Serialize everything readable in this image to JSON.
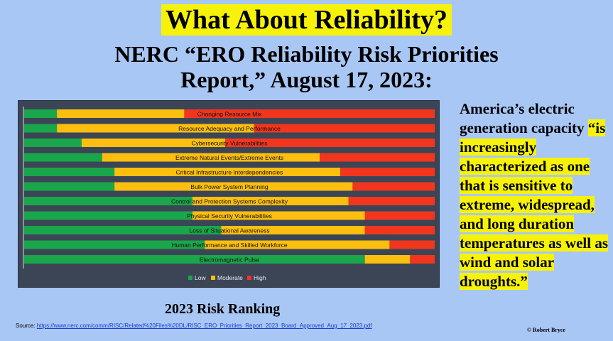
{
  "title": "What About Reliability?",
  "subtitle_line1": "NERC “ERO Reliability Risk Priorities",
  "subtitle_line2": "Report,” August 17, 2023:",
  "quote": {
    "plain": "America’s electric generation capacity ",
    "highlight": "“is increasingly characterized as one that is sensitive to extreme, widespread, and long duration temperatures as well as wind and solar droughts.”"
  },
  "ranking_label": "2023 Risk Ranking",
  "source": {
    "prefix": "Source: ",
    "link": "https://www.nerc.com/comm/RISC/Related%20Files%20DL/RISC_ERO_Priorities_Report_2023_Board_Approved_Aug_17_2023.pdf"
  },
  "credit": "© Robert Bryce",
  "colors": {
    "low": "#1aa64a",
    "moderate": "#fcbf0f",
    "high": "#f2361d"
  },
  "chart_data": {
    "type": "bar",
    "orientation": "horizontal",
    "stacked": true,
    "unit": "percent",
    "categories": [
      "Changing Resource Mix",
      "Resource Adequacy and Performance",
      "Cybersecurity Vulnerabilities",
      "Extreme Natural Events/Extreme Events",
      "Critical Infrastructure Interdependencies",
      "Bulk Power System Planning",
      "Control and Protection Systems Complexity",
      "Physical Security Vulnerabilities",
      "Loss of Situational Awareness",
      "Human Performance and Skilled Workforce",
      "Electromagnetic Pulse"
    ],
    "series": [
      {
        "name": "Low",
        "values": [
          8,
          8,
          14,
          19,
          22,
          22,
          41,
          41,
          48,
          44,
          83
        ]
      },
      {
        "name": "Moderate",
        "values": [
          31,
          48,
          35,
          53,
          55,
          58,
          38,
          42,
          35,
          45,
          11
        ]
      },
      {
        "name": "High",
        "values": [
          61,
          44,
          51,
          28,
          23,
          20,
          21,
          17,
          17,
          11,
          6
        ]
      }
    ],
    "legend": [
      "Low",
      "Moderate",
      "High"
    ],
    "legend_position": "bottom",
    "xlim": [
      0,
      100
    ]
  }
}
